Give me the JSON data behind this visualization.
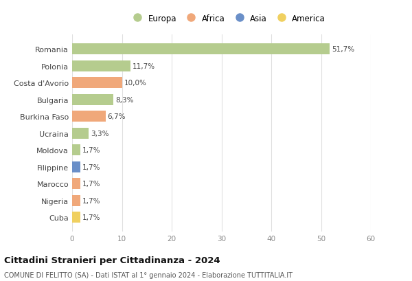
{
  "categories": [
    "Romania",
    "Polonia",
    "Costa d'Avorio",
    "Bulgaria",
    "Burkina Faso",
    "Ucraina",
    "Moldova",
    "Filippine",
    "Marocco",
    "Nigeria",
    "Cuba"
  ],
  "values": [
    51.7,
    11.7,
    10.0,
    8.3,
    6.7,
    3.3,
    1.7,
    1.7,
    1.7,
    1.7,
    1.7
  ],
  "labels": [
    "51,7%",
    "11,7%",
    "10,0%",
    "8,3%",
    "6,7%",
    "3,3%",
    "1,7%",
    "1,7%",
    "1,7%",
    "1,7%",
    "1,7%"
  ],
  "continents": [
    "Europa",
    "Europa",
    "Africa",
    "Europa",
    "Africa",
    "Europa",
    "Europa",
    "Asia",
    "Africa",
    "Africa",
    "America"
  ],
  "colors": {
    "Europa": "#b5cc8e",
    "Africa": "#f0a87a",
    "Asia": "#6a8fc8",
    "America": "#f0d060"
  },
  "legend_order": [
    "Europa",
    "Africa",
    "Asia",
    "America"
  ],
  "xlim": [
    0,
    60
  ],
  "xticks": [
    0,
    10,
    20,
    30,
    40,
    50,
    60
  ],
  "title": "Cittadini Stranieri per Cittadinanza - 2024",
  "subtitle": "COMUNE DI FELITTO (SA) - Dati ISTAT al 1° gennaio 2024 - Elaborazione TUTTITALIA.IT",
  "background_color": "#ffffff",
  "grid_color": "#e0e0e0",
  "bar_height": 0.65
}
